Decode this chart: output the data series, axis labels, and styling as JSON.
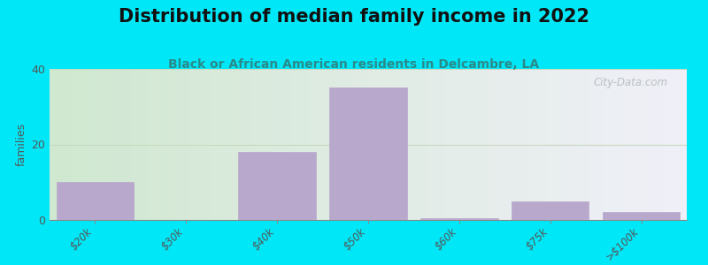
{
  "title": "Distribution of median family income in 2022",
  "subtitle": "Black or African American residents in Delcambre, LA",
  "categories": [
    "$20k",
    "$30k",
    "$40k",
    "$50k",
    "$60k",
    "$75k",
    ">$100k"
  ],
  "values": [
    10,
    0,
    18,
    35,
    0.5,
    5,
    2
  ],
  "bar_color": "#b8a8cc",
  "ylim": [
    0,
    40
  ],
  "yticks": [
    0,
    20,
    40
  ],
  "ylabel": "families",
  "background_outer": "#00e8f8",
  "grid_color": "#d0d8c8",
  "title_fontsize": 15,
  "subtitle_fontsize": 10,
  "title_color": "#111111",
  "subtitle_color": "#2a8a8a",
  "watermark": "City-Data.com",
  "bg_left_color": "#d0e8d0",
  "bg_right_color": "#f0f0f8"
}
